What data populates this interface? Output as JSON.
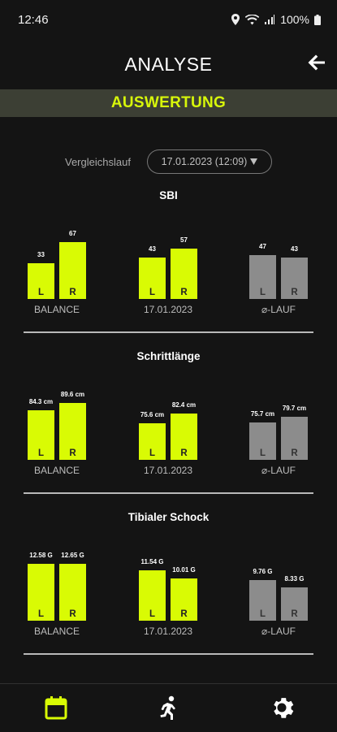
{
  "status": {
    "time": "12:46",
    "battery": "100%"
  },
  "header": {
    "title": "ANALYSE"
  },
  "banner": {
    "title": "AUSWERTUNG"
  },
  "compare": {
    "label": "Vergleichslauf",
    "value": "17.01.2023 (12:09)"
  },
  "colors": {
    "accent": "#d9fb04",
    "gray": "#8c8c8c",
    "bg": "#141414"
  },
  "side_labels": {
    "left": "L",
    "right": "R"
  },
  "sections": [
    {
      "title": "SBI",
      "groups": [
        {
          "label": "BALANCE",
          "left": "33",
          "right": "67",
          "left_value": 33,
          "right_value": 67
        },
        {
          "label": "17.01.2023",
          "left": "43",
          "right": "57",
          "left_value": 43,
          "right_value": 57
        },
        {
          "label": "⌀-LAUF",
          "left": "47",
          "right": "43",
          "left_value": 47,
          "right_value": 43
        }
      ]
    },
    {
      "title": "Schrittlänge",
      "groups": [
        {
          "label": "BALANCE",
          "left": "84.3 cm",
          "right": "89.6 cm",
          "left_value": 84.3,
          "right_value": 89.6
        },
        {
          "label": "17.01.2023",
          "left": "75.6 cm",
          "right": "82.4 cm",
          "left_value": 75.6,
          "right_value": 82.4
        },
        {
          "label": "⌀-LAUF",
          "left": "75.7 cm",
          "right": "79.7 cm",
          "left_value": 75.7,
          "right_value": 79.7
        }
      ]
    },
    {
      "title": "Tibialer Schock",
      "groups": [
        {
          "label": "BALANCE",
          "left": "12.58 G",
          "right": "12.65 G",
          "left_value": 12.58,
          "right_value": 12.65
        },
        {
          "label": "17.01.2023",
          "left": "11.54 G",
          "right": "10.01 G",
          "left_value": 11.54,
          "right_value": 10.01
        },
        {
          "label": "⌀-LAUF",
          "left": "9.76 G",
          "right": "8.33 G",
          "left_value": 9.76,
          "right_value": 8.33
        }
      ]
    }
  ],
  "nav": [
    {
      "icon": "calendar-icon",
      "active": true
    },
    {
      "icon": "runner-icon",
      "active": false
    },
    {
      "icon": "gear-icon",
      "active": false
    }
  ]
}
